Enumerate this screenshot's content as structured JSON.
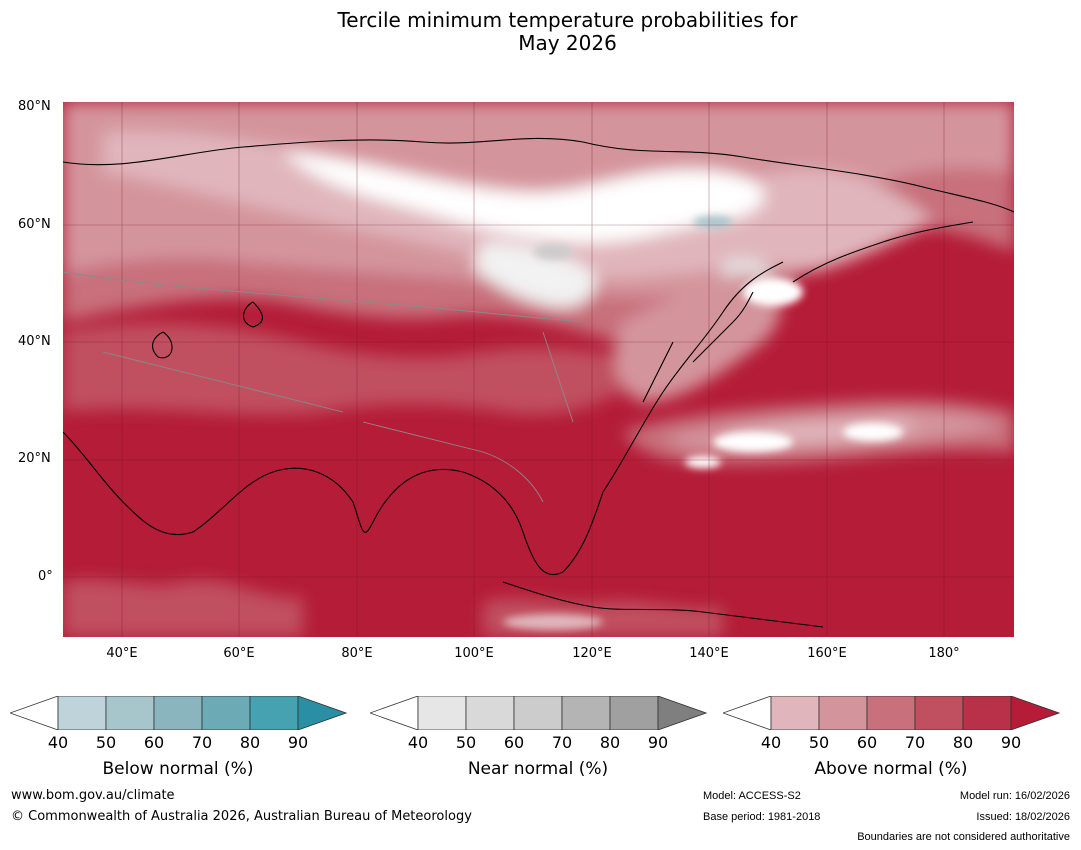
{
  "title_line1": "Tercile minimum temperature probabilities for",
  "title_line2": "May 2026",
  "lat_labels": [
    "80°N",
    "60°N",
    "40°N",
    "20°N",
    "0°"
  ],
  "lon_labels": [
    "40°E",
    "60°E",
    "80°E",
    "100°E",
    "120°E",
    "140°E",
    "160°E",
    "180°"
  ],
  "colorbars": [
    {
      "label": "Below normal (%)",
      "ticks": [
        "40",
        "50",
        "60",
        "70",
        "80",
        "90"
      ],
      "colors": [
        "#bfd3db",
        "#a6c6cc",
        "#8ab5be",
        "#6caab6",
        "#46a1b1",
        "#2a8fa5"
      ]
    },
    {
      "label": "Near normal (%)",
      "ticks": [
        "40",
        "50",
        "60",
        "70",
        "80",
        "90"
      ],
      "colors": [
        "#e6e6e6",
        "#d9d9d9",
        "#cccccc",
        "#b4b4b4",
        "#a0a0a0",
        "#7f7f7f"
      ]
    },
    {
      "label": "Above normal (%)",
      "ticks": [
        "40",
        "50",
        "60",
        "70",
        "80",
        "90"
      ],
      "colors": [
        "#e0b6bc",
        "#d4949c",
        "#c8707c",
        "#c0505f",
        "#b83149",
        "#b41c37"
      ]
    }
  ],
  "footer": {
    "website": "www.bom.gov.au/climate",
    "copyright": "© Commonwealth of Australia 2026, Australian Bureau of Meteorology",
    "model": "Model: ACCESS-S2",
    "base_period": "Base period: 1981-2018",
    "model_run": "Model run: 16/02/2026",
    "issued": "Issued: 18/02/2026",
    "disclaimer": "Boundaries are not considered authoritative"
  }
}
